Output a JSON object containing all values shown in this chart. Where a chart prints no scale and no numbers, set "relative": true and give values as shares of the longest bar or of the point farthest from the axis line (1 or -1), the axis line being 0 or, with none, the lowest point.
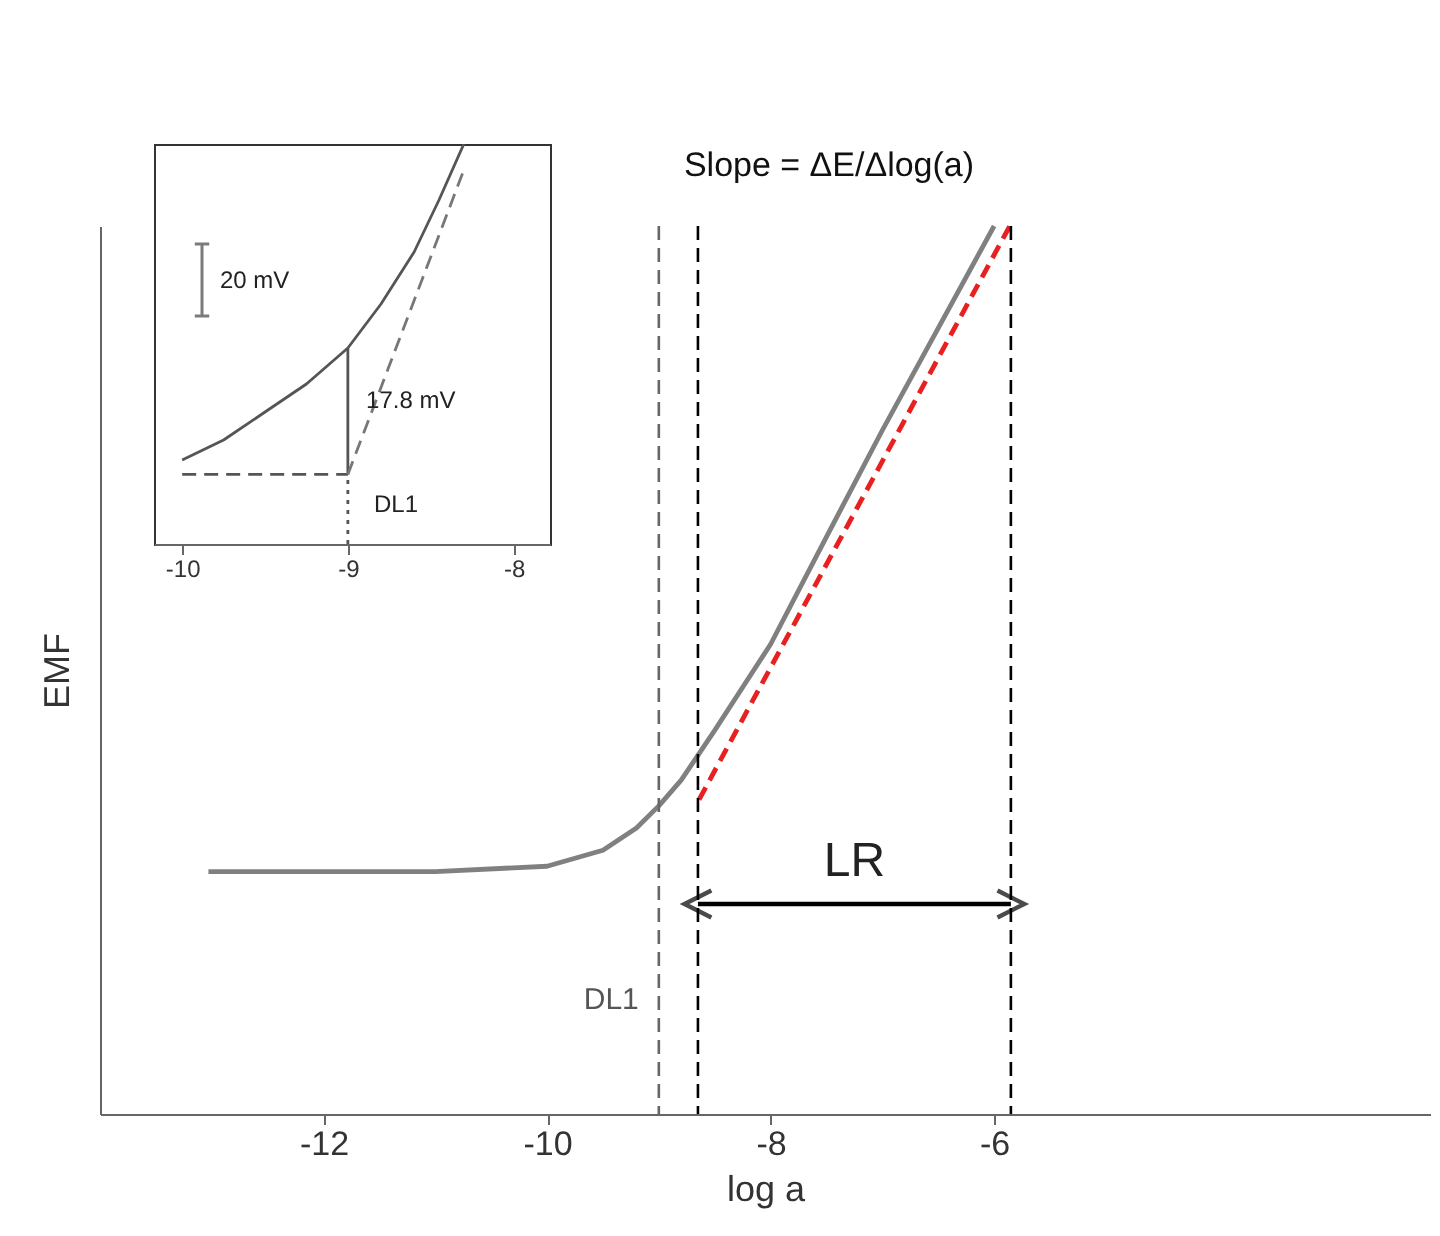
{
  "chart_data": [
    {
      "type": "line",
      "title": "Slope = ΔE/Δlog(a)",
      "xlabel": "log a",
      "ylabel": "EMF",
      "relative": true,
      "xlim": [
        -14,
        -2.1
      ],
      "xticks": [
        -12,
        -10,
        -8,
        -6
      ],
      "series": [
        {
          "color": "#808080",
          "x": [
            -13.03,
            -12,
            -11,
            -10,
            -9.5,
            -9.2,
            -9,
            -8.8,
            -8.5,
            -8,
            -7.5,
            -7,
            -6.5,
            -6
          ],
          "values": [
            0.273,
            0.273,
            0.273,
            0.279,
            0.297,
            0.322,
            0.347,
            0.376,
            0.432,
            0.529,
            0.65,
            0.77,
            0.885,
            1.0
          ]
        },
        {
          "color": "#e8201f",
          "line_style": "dashed",
          "x": [
            -8.64,
            -5.86
          ],
          "values": [
            0.354,
            1.0
          ]
        }
      ],
      "ref_lines": [
        {
          "axis": "x",
          "value": -9,
          "label": "DL1",
          "color": "#666666",
          "line_style": "dashed"
        },
        {
          "axis": "x",
          "value": -8.65,
          "color": "#000000",
          "line_style": "dashed"
        },
        {
          "axis": "x",
          "value": -5.85,
          "color": "#000000",
          "line_style": "dashed"
        }
      ],
      "annotations": [
        "LR"
      ]
    },
    {
      "type": "line",
      "relative": true,
      "xlim": [
        -10.17,
        -7.78
      ],
      "xticks": [
        -10,
        -9,
        -8
      ],
      "series": [
        {
          "color": "#555555",
          "x": [
            -10,
            -9.75,
            -9.5,
            -9.25,
            -9,
            -8.8,
            -8.6,
            -8.45,
            -8.3
          ],
          "values": [
            0.21,
            0.26,
            0.33,
            0.4,
            0.49,
            0.6,
            0.73,
            0.86,
            1.0
          ]
        },
        {
          "color": "#555555",
          "line_style": "dashed",
          "x": [
            -10,
            -9
          ],
          "values": [
            0.174,
            0.174
          ]
        },
        {
          "color": "#555555",
          "x": [
            -9,
            -9
          ],
          "values": [
            0.174,
            0.49
          ]
        },
        {
          "color": "#777777",
          "line_style": "dashed",
          "x": [
            -9,
            -8.3
          ],
          "values": [
            0.174,
            0.935
          ]
        },
        {
          "color": "#555555",
          "line_style": "dotted",
          "x": [
            -9,
            -9
          ],
          "values": [
            0,
            0.174
          ]
        }
      ],
      "annotations": [
        "20 mV",
        {
          "text": "17.8 mV",
          "x": -8.89,
          "y": 0.36
        },
        "DL1"
      ]
    }
  ]
}
